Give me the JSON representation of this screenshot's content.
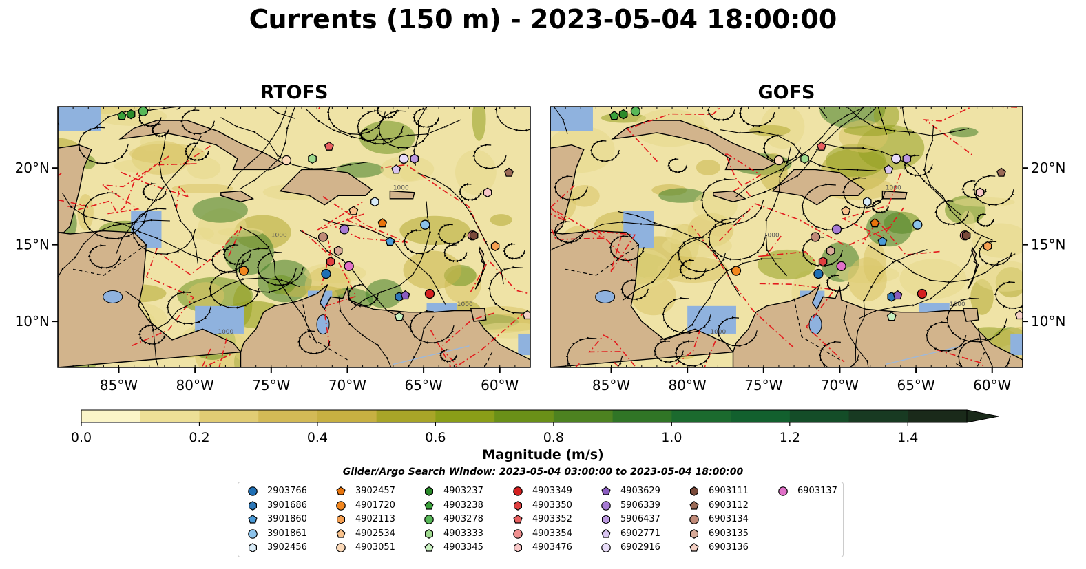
{
  "title": "Currents (150 m) - 2023-05-04 18:00:00",
  "panels": [
    {
      "title": "RTOFS"
    },
    {
      "title": "GOFS"
    }
  ],
  "chart_data": {
    "type": "heatmap",
    "map_extent": {
      "lon": [
        -89,
        -58
      ],
      "lat": [
        7,
        24
      ]
    },
    "x_ticks": [
      "85°W",
      "80°W",
      "75°W",
      "70°W",
      "65°W",
      "60°W"
    ],
    "x_tick_values": [
      -85,
      -80,
      -75,
      -70,
      -65,
      -60
    ],
    "y_ticks": [
      "20°N",
      "15°N",
      "10°N"
    ],
    "y_tick_values": [
      20,
      15,
      10
    ],
    "contour_label": "1000",
    "colorbar": {
      "label": "Magnitude (m/s)",
      "range": [
        0.0,
        1.5
      ],
      "extend": "max",
      "ticks": [
        "0.0",
        "0.2",
        "0.4",
        "0.6",
        "0.8",
        "1.0",
        "1.2",
        "1.4"
      ],
      "tick_values": [
        0.0,
        0.2,
        0.4,
        0.6,
        0.8,
        1.0,
        1.2,
        1.4
      ],
      "colors": [
        "#fbf5c8",
        "#eddf96",
        "#e1cc74",
        "#d3ba56",
        "#c7b042",
        "#a8a528",
        "#8a9e18",
        "#6a9018",
        "#4d8220",
        "#307526",
        "#1b6a2e",
        "#12602e",
        "#144d28",
        "#183a22",
        "#1a2a1a"
      ]
    },
    "search_window": "Glider/Argo Search Window: 2023-05-04 03:00:00 to 2023-05-04 18:00:00",
    "floats": [
      {
        "id": "2903766",
        "marker": "circle",
        "color": "#1f6fb4"
      },
      {
        "id": "3901686",
        "marker": "hexagon",
        "color": "#2e78b8"
      },
      {
        "id": "3901860",
        "marker": "pentagon",
        "color": "#4b9bd8"
      },
      {
        "id": "3901861",
        "marker": "circle",
        "color": "#8cc2ea"
      },
      {
        "id": "3902456",
        "marker": "hexagon",
        "color": "#d9ecf8"
      },
      {
        "id": "3902457",
        "marker": "pentagon",
        "color": "#e8740c"
      },
      {
        "id": "4901720",
        "marker": "circle",
        "color": "#f2861e"
      },
      {
        "id": "4902113",
        "marker": "hexagon",
        "color": "#f6a052"
      },
      {
        "id": "4902534",
        "marker": "pentagon",
        "color": "#f9c28c"
      },
      {
        "id": "4903051",
        "marker": "circle",
        "color": "#fbd9b8"
      },
      {
        "id": "4903237",
        "marker": "hexagon",
        "color": "#2a8a2a"
      },
      {
        "id": "4903238",
        "marker": "pentagon",
        "color": "#3aa03a"
      },
      {
        "id": "4903278",
        "marker": "circle",
        "color": "#58b858"
      },
      {
        "id": "4903333",
        "marker": "hexagon",
        "color": "#9ed98e"
      },
      {
        "id": "4903345",
        "marker": "pentagon",
        "color": "#c8f0c0"
      },
      {
        "id": "4903349",
        "marker": "circle",
        "color": "#d42020"
      },
      {
        "id": "4903350",
        "marker": "hexagon",
        "color": "#e04040"
      },
      {
        "id": "4903352",
        "marker": "pentagon",
        "color": "#e86060"
      },
      {
        "id": "4903354",
        "marker": "circle",
        "color": "#f09090"
      },
      {
        "id": "4903476",
        "marker": "hexagon",
        "color": "#f8c8c8"
      },
      {
        "id": "4903629",
        "marker": "pentagon",
        "color": "#8a5cc0"
      },
      {
        "id": "5906339",
        "marker": "circle",
        "color": "#a67ad4"
      },
      {
        "id": "5906437",
        "marker": "hexagon",
        "color": "#bc9ae0"
      },
      {
        "id": "6902771",
        "marker": "pentagon",
        "color": "#d8c4f0"
      },
      {
        "id": "6902916",
        "marker": "circle",
        "color": "#e8dcf8"
      },
      {
        "id": "6903111",
        "marker": "hexagon",
        "color": "#7a4a3a"
      },
      {
        "id": "6903112",
        "marker": "pentagon",
        "color": "#9a6a56"
      },
      {
        "id": "6903134",
        "marker": "circle",
        "color": "#c08a78"
      },
      {
        "id": "6903135",
        "marker": "hexagon",
        "color": "#d8aa98"
      },
      {
        "id": "6903136",
        "marker": "pentagon",
        "color": "#f4d0c4"
      },
      {
        "id": "6903137",
        "marker": "circle",
        "color": "#e070c8"
      }
    ],
    "float_positions": [
      {
        "id": "2903766",
        "lon": -71.4,
        "lat": 13.1
      },
      {
        "id": "3901686",
        "lon": -66.6,
        "lat": 11.6
      },
      {
        "id": "3901860",
        "lon": -67.2,
        "lat": 15.2
      },
      {
        "id": "3901861",
        "lon": -64.9,
        "lat": 16.3
      },
      {
        "id": "3902456",
        "lon": -68.2,
        "lat": 17.8
      },
      {
        "id": "3902457",
        "lon": -67.7,
        "lat": 16.4
      },
      {
        "id": "4901720",
        "lon": -76.8,
        "lat": 13.3
      },
      {
        "id": "4902113",
        "lon": -60.3,
        "lat": 14.9
      },
      {
        "id": "4902534",
        "lon": -69.6,
        "lat": 17.2
      },
      {
        "id": "4903051",
        "lon": -74.0,
        "lat": 20.5
      },
      {
        "id": "4903237",
        "lon": -84.2,
        "lat": 23.5
      },
      {
        "id": "4903238",
        "lon": -84.8,
        "lat": 23.4
      },
      {
        "id": "4903278",
        "lon": -83.4,
        "lat": 23.7
      },
      {
        "id": "4903333",
        "lon": -72.3,
        "lat": 20.6
      },
      {
        "id": "4903345",
        "lon": -66.6,
        "lat": 10.3
      },
      {
        "id": "4903349",
        "lon": -64.6,
        "lat": 11.8
      },
      {
        "id": "4903350",
        "lon": -71.1,
        "lat": 13.9
      },
      {
        "id": "4903352",
        "lon": -71.2,
        "lat": 21.4
      },
      {
        "id": "4903354",
        "lon": -61.8,
        "lat": 15.6
      },
      {
        "id": "4903476",
        "lon": -60.8,
        "lat": 18.4
      },
      {
        "id": "4903629",
        "lon": -66.2,
        "lat": 11.7
      },
      {
        "id": "5906339",
        "lon": -70.2,
        "lat": 16.0
      },
      {
        "id": "5906437",
        "lon": -65.6,
        "lat": 20.6
      },
      {
        "id": "6902771",
        "lon": -66.8,
        "lat": 19.9
      },
      {
        "id": "6902916",
        "lon": -66.3,
        "lat": 20.6
      },
      {
        "id": "6903111",
        "lon": -61.7,
        "lat": 15.6
      },
      {
        "id": "6903112",
        "lon": -59.4,
        "lat": 19.7
      },
      {
        "id": "6903134",
        "lon": -71.6,
        "lat": 15.5
      },
      {
        "id": "6903135",
        "lon": -70.6,
        "lat": 14.6
      },
      {
        "id": "6903136",
        "lon": -58.2,
        "lat": 10.4
      },
      {
        "id": "6903137",
        "lon": -69.9,
        "lat": 13.6
      }
    ]
  }
}
